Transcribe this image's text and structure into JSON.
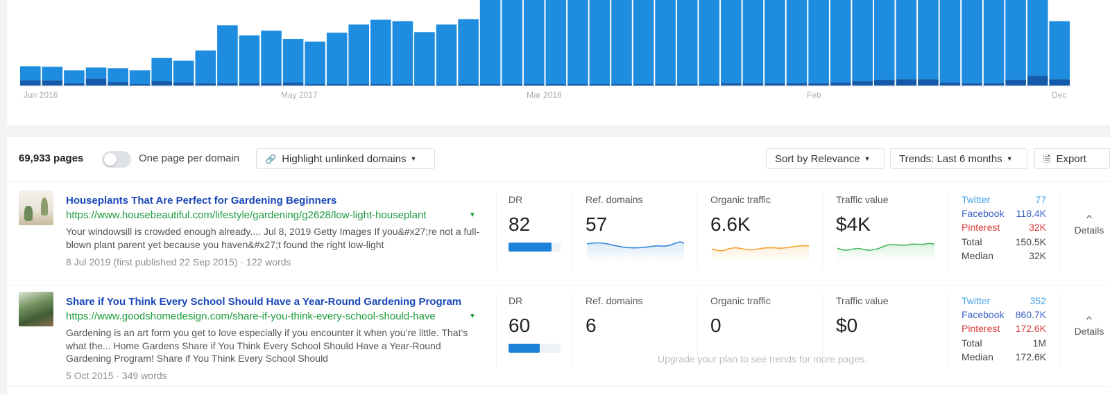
{
  "chart_data": {
    "type": "bar",
    "stacked": true,
    "series": [
      {
        "values": [
          8,
          8,
          4,
          11,
          6,
          3,
          7,
          5,
          4,
          4,
          4,
          4,
          5,
          3,
          3,
          3,
          3,
          3,
          2,
          2,
          3,
          3,
          3,
          3,
          3,
          3,
          3,
          3,
          3,
          3,
          3,
          3,
          4,
          4,
          4,
          4,
          4,
          5,
          7,
          9,
          10,
          10,
          5,
          4,
          4,
          9,
          15,
          10
        ]
      },
      {
        "values": [
          29,
          28,
          23,
          27,
          26,
          23,
          41,
          37,
          52,
          89,
          74,
          81,
          69,
          65,
          78,
          90,
          97,
          95,
          79,
          90,
          98,
          126,
          126,
          126,
          126,
          126,
          126,
          126,
          126,
          126,
          126,
          126,
          126,
          126,
          126,
          126,
          126,
          126,
          126,
          126,
          126,
          126,
          126,
          126,
          126,
          126,
          126,
          95
        ]
      }
    ],
    "x_ticks": [
      "Jun 2016",
      "May 2017",
      "Mar 2018",
      "Feb",
      "Dec"
    ],
    "colors": {
      "primary": "#1e8de0",
      "secondary": "#135ba8"
    }
  },
  "toolbar": {
    "pages_count": "69,933 pages",
    "toggle_label": "One page per domain",
    "toggle_on": false,
    "highlight_label": "Highlight unlinked domains",
    "sort_label": "Sort by Relevance",
    "trends_label": "Trends: Last 6 months",
    "export_label": "Export"
  },
  "rows": [
    {
      "title": "Houseplants That Are Perfect for Gardening Beginners",
      "url": "https://www.housebeautiful.com/lifestyle/gardening/g2628/low-light-houseplant",
      "snippet": "Your windowsill is crowded enough already.... Jul 8, 2019 Getty Images If you&#x27;re not a full-blown plant parent yet because you haven&#x27;t found the right low-light",
      "meta": "8 Jul 2019 (first published 22 Sep 2015) · 122 words",
      "dr_label": "DR",
      "dr": "82",
      "dr_fill": 0.82,
      "ref_label": "Ref. domains",
      "ref": "57",
      "org_label": "Organic traffic",
      "org": "6.6K",
      "tv_label": "Traffic value",
      "tv": "$4K",
      "social": [
        {
          "label": "Twitter",
          "value": "77"
        },
        {
          "label": "Facebook",
          "value": "118.4K"
        },
        {
          "label": "Pinterest",
          "value": "32K"
        },
        {
          "label": "Total",
          "value": "150.5K"
        },
        {
          "label": "Median",
          "value": "32K"
        }
      ],
      "details": "Details"
    },
    {
      "title": "Share if You Think Every School Should Have a Year-Round Gardening Program",
      "url": "https://www.goodshomedesign.com/share-if-you-think-every-school-should-have",
      "snippet": "Gardening is an art form you get to love especially if you encounter it when you’re little. That’s what the... Home Gardens Share if You Think Every School Should Have a Year-Round Gardening Program! Share if You Think Every School Should",
      "meta": "5 Oct 2015 · 349 words",
      "dr_label": "DR",
      "dr": "60",
      "dr_fill": 0.6,
      "ref_label": "Ref. domains",
      "ref": "6",
      "org_label": "Organic traffic",
      "org": "0",
      "tv_label": "Traffic value",
      "tv": "$0",
      "upgrade_note": "Upgrade your plan to see trends for more pages.",
      "social": [
        {
          "label": "Twitter",
          "value": "352"
        },
        {
          "label": "Facebook",
          "value": "860.7K"
        },
        {
          "label": "Pinterest",
          "value": "172.6K"
        },
        {
          "label": "Total",
          "value": "1M"
        },
        {
          "label": "Median",
          "value": "172.6K"
        }
      ],
      "details": "Details"
    }
  ],
  "sparklines": {
    "ref_color": "#2f86d6",
    "organic_color": "#f2a22e",
    "value_color": "#3fb65c"
  },
  "icons": {
    "link_icon": "🔗",
    "export_icon": "🗎",
    "caret": "▼",
    "chevron_up": "^"
  }
}
